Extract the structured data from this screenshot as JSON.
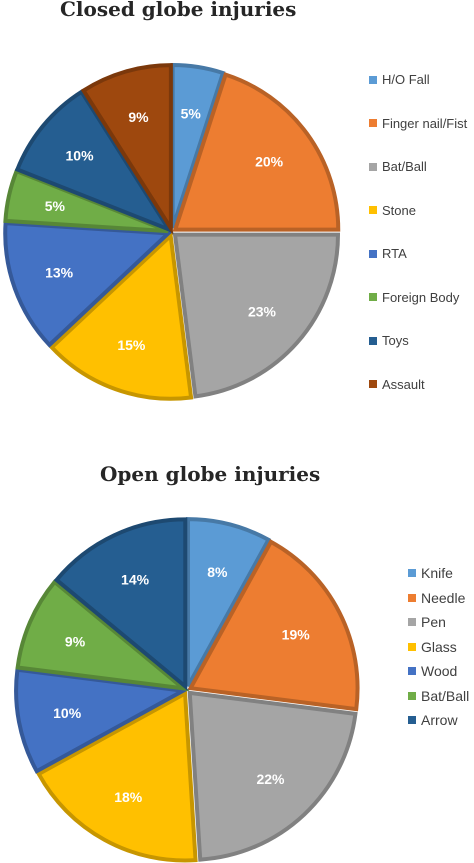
{
  "chart_data": [
    {
      "type": "pie",
      "title": "Closed globe injuries",
      "categories": [
        "H/O Fall",
        "Finger nail/Fist",
        "Bat/Ball",
        "Stone",
        "RTA",
        "Foreign Body",
        "Toys",
        "Assault"
      ],
      "values": [
        5,
        20,
        23,
        15,
        13,
        5,
        10,
        9
      ],
      "labels": [
        "5%",
        "20%",
        "23%",
        "15%",
        "13%",
        "5%",
        "10%",
        "9%"
      ],
      "colors": [
        "#5B9BD5",
        "#ED7D31",
        "#A5A5A5",
        "#FFC000",
        "#4472C4",
        "#70AD47",
        "#255E91",
        "#9E480E"
      ],
      "legend": "right"
    },
    {
      "type": "pie",
      "title": "Open globe injuries",
      "categories": [
        "Knife",
        "Needle",
        "Pen",
        "Glass",
        "Wood",
        "Bat/Ball",
        "Arrow"
      ],
      "values": [
        8,
        19,
        22,
        18,
        10,
        9,
        14
      ],
      "labels": [
        "8%",
        "19%",
        "22%",
        "18%",
        "10%",
        "9%",
        "14%"
      ],
      "colors": [
        "#5B9BD5",
        "#ED7D31",
        "#A5A5A5",
        "#FFC000",
        "#4472C4",
        "#70AD47",
        "#255E91"
      ],
      "legend": "right"
    }
  ]
}
